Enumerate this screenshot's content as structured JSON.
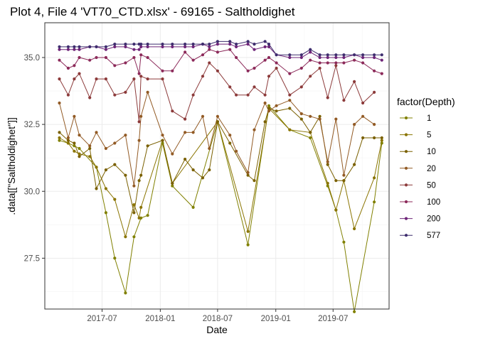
{
  "chart_data": {
    "type": "line",
    "title": "Plot 4, File 4 'VT70_CTD.xlsx' - 69165  -  Saltholdighet",
    "xlabel": "Date",
    "ylabel": ".data[[\"Saltholdighet\"]]",
    "xlim": [
      "2017-01-01",
      "2019-12-25"
    ],
    "ylim": [
      25.6,
      36.3
    ],
    "x_ticks": [
      {
        "value": "2017-07-01",
        "label": "2017-07"
      },
      {
        "value": "2018-01-01",
        "label": "2018-01"
      },
      {
        "value": "2018-07-01",
        "label": "2018-07"
      },
      {
        "value": "2019-01-01",
        "label": "2019-01"
      },
      {
        "value": "2019-07-01",
        "label": "2019-07"
      }
    ],
    "y_ticks": [
      {
        "value": 27.5,
        "label": "27.5"
      },
      {
        "value": 30.0,
        "label": "30.0"
      },
      {
        "value": 32.5,
        "label": "32.5"
      },
      {
        "value": 35.0,
        "label": "35.0"
      }
    ],
    "grid": true,
    "legend_title": "factor(Depth)",
    "legend_position": "right",
    "x": [
      "2017-02-16",
      "2017-03-16",
      "2017-04-04",
      "2017-04-20",
      "2017-05-23",
      "2017-06-13",
      "2017-07-13",
      "2017-08-10",
      "2017-09-13",
      "2017-10-10",
      "2017-10-26",
      "2017-11-01",
      "2017-11-22",
      "2018-01-08",
      "2018-02-08",
      "2018-03-20",
      "2018-04-15",
      "2018-05-15",
      "2018-06-05",
      "2018-07-01",
      "2018-08-09",
      "2018-08-29",
      "2018-10-05",
      "2018-10-25",
      "2018-11-28",
      "2018-12-10",
      "2019-01-03",
      "2019-02-14",
      "2019-03-23",
      "2019-04-20",
      "2019-05-20",
      "2019-06-14",
      "2019-07-10",
      "2019-08-04",
      "2019-09-06",
      "2019-10-03",
      "2019-11-08",
      "2019-12-02"
    ],
    "series": [
      {
        "name": "1",
        "color": "#808000",
        "values": [
          31.9,
          31.8,
          31.7,
          31.6,
          null,
          30.9,
          29.2,
          27.5,
          26.2,
          28.3,
          null,
          29.0,
          29.1,
          31.8,
          30.2,
          null,
          29.4,
          null,
          null,
          32.6,
          null,
          null,
          28.0,
          null,
          null,
          33.2,
          null,
          32.3,
          null,
          32.0,
          null,
          30.2,
          29.3,
          28.1,
          25.5,
          null,
          29.6,
          31.8
        ]
      },
      {
        "name": "5",
        "color": "#8a7400",
        "values": [
          32.0,
          31.8,
          31.5,
          31.4,
          31.3,
          30.9,
          30.1,
          29.7,
          28.3,
          29.5,
          29.0,
          29.4,
          null,
          31.9,
          30.3,
          null,
          null,
          null,
          null,
          32.6,
          null,
          null,
          28.5,
          null,
          null,
          33.1,
          null,
          32.3,
          null,
          32.2,
          null,
          30.3,
          29.3,
          30.4,
          28.6,
          null,
          30.5,
          31.9
        ]
      },
      {
        "name": "10",
        "color": "#7a6000",
        "values": [
          32.2,
          31.9,
          31.8,
          31.3,
          31.6,
          30.1,
          30.8,
          31.0,
          30.6,
          29.2,
          30.4,
          30.6,
          31.7,
          31.9,
          30.3,
          31.2,
          30.8,
          30.5,
          30.8,
          32.6,
          31.8,
          null,
          30.6,
          30.4,
          32.6,
          33.1,
          33.0,
          33.1,
          32.7,
          32.2,
          32.8,
          31.0,
          30.4,
          30.4,
          31.0,
          32.0,
          32.0,
          32.0
        ]
      },
      {
        "name": "20",
        "color": "#925a24",
        "values": [
          33.3,
          32.0,
          32.8,
          32.1,
          31.7,
          32.2,
          31.6,
          31.8,
          32.1,
          30.2,
          31.9,
          32.8,
          33.7,
          32.1,
          31.4,
          32.2,
          32.2,
          32.8,
          31.6,
          32.8,
          32.1,
          31.5,
          30.7,
          32.3,
          33.3,
          33.0,
          33.2,
          33.4,
          32.9,
          32.8,
          32.7,
          31.1,
          32.7,
          30.6,
          32.5,
          32.8,
          32.5,
          null
        ]
      },
      {
        "name": "50",
        "color": "#8c3a3a",
        "values": [
          34.2,
          33.6,
          34.2,
          34.4,
          33.5,
          34.2,
          34.2,
          33.6,
          33.7,
          34.2,
          32.6,
          34.3,
          34.2,
          34.2,
          33.0,
          32.7,
          33.6,
          34.3,
          34.8,
          34.5,
          33.9,
          33.6,
          33.6,
          33.9,
          33.6,
          34.3,
          34.6,
          33.6,
          33.9,
          34.3,
          34.6,
          33.5,
          34.7,
          33.4,
          34.1,
          33.3,
          33.7,
          null
        ]
      },
      {
        "name": "100",
        "color": "#8c2a5a",
        "values": [
          34.9,
          34.6,
          34.7,
          35.0,
          34.9,
          35.0,
          35.0,
          34.7,
          34.8,
          35.0,
          34.4,
          35.1,
          35.0,
          34.5,
          34.5,
          35.2,
          34.9,
          35.1,
          35.3,
          35.2,
          35.3,
          35.0,
          34.5,
          34.6,
          34.9,
          35.0,
          34.8,
          34.4,
          34.6,
          34.9,
          34.8,
          34.8,
          34.8,
          34.8,
          34.9,
          34.8,
          34.5,
          34.4
        ]
      },
      {
        "name": "200",
        "color": "#6e2478",
        "values": [
          35.3,
          35.3,
          35.3,
          35.3,
          35.4,
          35.4,
          35.3,
          35.4,
          35.4,
          35.3,
          35.3,
          35.4,
          35.4,
          35.4,
          35.4,
          35.4,
          35.4,
          35.5,
          35.4,
          35.5,
          35.5,
          35.4,
          35.5,
          35.3,
          35.4,
          35.4,
          35.1,
          35.0,
          35.0,
          35.2,
          35.0,
          35.0,
          35.0,
          35.0,
          35.1,
          35.0,
          35.0,
          34.9
        ]
      },
      {
        "name": "577",
        "color": "#3e2d6e",
        "values": [
          35.4,
          35.4,
          35.4,
          35.4,
          35.4,
          35.4,
          35.4,
          35.5,
          35.5,
          35.5,
          35.5,
          35.5,
          35.5,
          35.5,
          35.5,
          35.5,
          35.5,
          35.5,
          35.5,
          35.6,
          35.6,
          35.5,
          35.6,
          35.5,
          35.6,
          35.5,
          35.1,
          35.1,
          35.1,
          35.3,
          35.1,
          35.1,
          35.1,
          35.1,
          35.1,
          35.1,
          35.1,
          35.1
        ]
      }
    ]
  }
}
